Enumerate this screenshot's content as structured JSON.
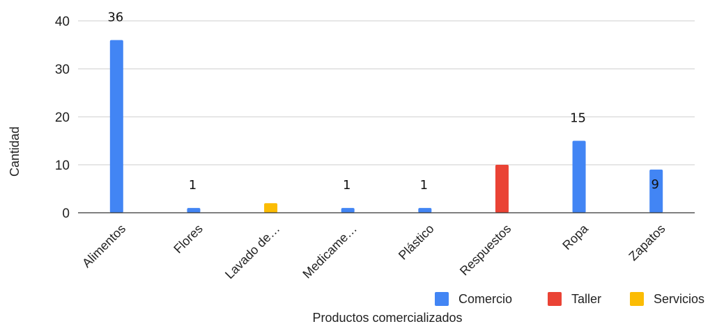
{
  "chart_data": {
    "type": "bar",
    "categories": [
      "Alimentos",
      "Flores",
      "Lavado de…",
      "Medicame…",
      "Plástico",
      "Respuestos",
      "Ropa",
      "Zapatos"
    ],
    "series": [
      {
        "name": "Comercio",
        "color": "#4285F4",
        "values": [
          36,
          1,
          null,
          1,
          1,
          null,
          15,
          9
        ]
      },
      {
        "name": "Taller",
        "color": "#EA4335",
        "values": [
          null,
          null,
          null,
          null,
          null,
          10,
          null,
          null
        ]
      },
      {
        "name": "Servicios",
        "color": "#FBBC04",
        "values": [
          null,
          null,
          2,
          null,
          null,
          null,
          null,
          null
        ]
      }
    ],
    "data_labels": [
      {
        "category": "Alimentos",
        "text": "36"
      },
      {
        "category": "Flores",
        "text": "1"
      },
      {
        "category": "Medicame…",
        "text": "1"
      },
      {
        "category": "Plástico",
        "text": "1"
      },
      {
        "category": "Ropa",
        "text": "15"
      },
      {
        "category": "Zapatos",
        "text": "9"
      }
    ],
    "xlabel": "Productos comercializados",
    "ylabel": "Cantidad",
    "ylim": [
      0,
      40
    ],
    "yticks": [
      "0",
      "10",
      "20",
      "30",
      "40"
    ],
    "grid": true,
    "legend_position": "bottom-right"
  }
}
